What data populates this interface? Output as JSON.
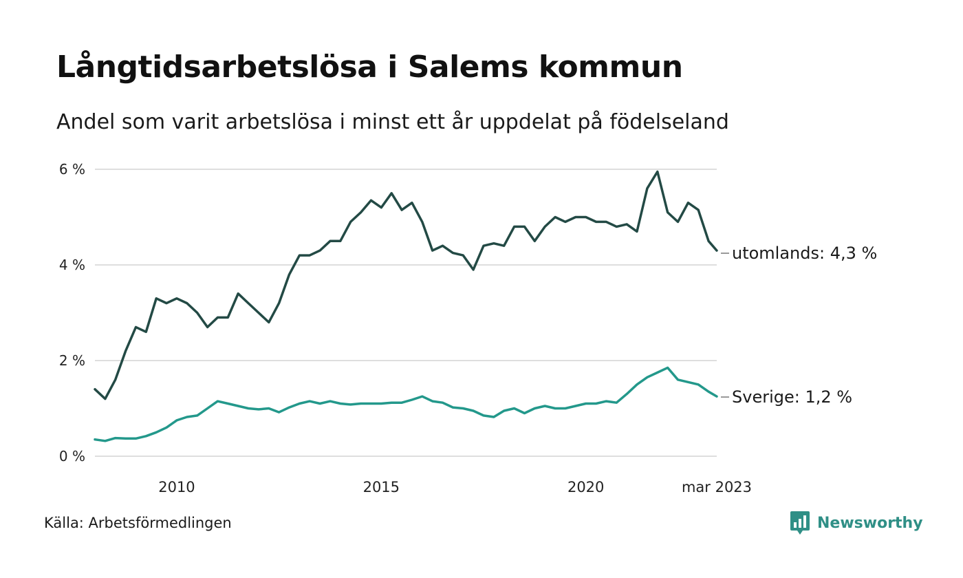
{
  "header": {
    "title": "Långtidsarbetslösa i Salems kommun",
    "subtitle": "Andel som varit arbetslösa i minst ett år uppdelat på födelseland"
  },
  "footer": {
    "source": "Källa: Arbetsförmedlingen",
    "brand": "Newsworthy",
    "brand_icon": "bar-chart-speech-icon"
  },
  "chart_data": {
    "type": "line",
    "x_unit": "year",
    "xlim": [
      2008,
      2023.2
    ],
    "ylim": [
      0,
      6
    ],
    "yticks": [
      0,
      2,
      4,
      6
    ],
    "ytick_labels": [
      "0 %",
      "2 %",
      "4 %",
      "6 %"
    ],
    "xticks": [
      2010,
      2015,
      2020,
      2023.2
    ],
    "xtick_labels": [
      "2010",
      "2015",
      "2020",
      "mar 2023"
    ],
    "grid": "horizontal",
    "legend": "direct labels at line ends",
    "series": [
      {
        "name": "utomlands",
        "end_label": "utomlands: 4,3 %",
        "color": "#234a45",
        "x": [
          2008.0,
          2008.25,
          2008.5,
          2008.75,
          2009.0,
          2009.25,
          2009.5,
          2009.75,
          2010.0,
          2010.25,
          2010.5,
          2010.75,
          2011.0,
          2011.25,
          2011.5,
          2011.75,
          2012.0,
          2012.25,
          2012.5,
          2012.75,
          2013.0,
          2013.25,
          2013.5,
          2013.75,
          2014.0,
          2014.25,
          2014.5,
          2014.75,
          2015.0,
          2015.25,
          2015.5,
          2015.75,
          2016.0,
          2016.25,
          2016.5,
          2016.75,
          2017.0,
          2017.25,
          2017.5,
          2017.75,
          2018.0,
          2018.25,
          2018.5,
          2018.75,
          2019.0,
          2019.25,
          2019.5,
          2019.75,
          2020.0,
          2020.25,
          2020.5,
          2020.75,
          2021.0,
          2021.25,
          2021.5,
          2021.75,
          2022.0,
          2022.25,
          2022.5,
          2022.75,
          2023.0,
          2023.2
        ],
        "y": [
          1.4,
          1.2,
          1.6,
          2.2,
          2.7,
          2.6,
          3.3,
          3.2,
          3.3,
          3.2,
          3.0,
          2.7,
          2.9,
          2.9,
          3.4,
          3.2,
          3.0,
          2.8,
          3.2,
          3.8,
          4.2,
          4.2,
          4.3,
          4.5,
          4.5,
          4.9,
          5.1,
          5.35,
          5.2,
          5.5,
          5.15,
          5.3,
          4.9,
          4.3,
          4.4,
          4.25,
          4.2,
          3.9,
          4.4,
          4.45,
          4.4,
          4.8,
          4.8,
          4.5,
          4.8,
          5.0,
          4.9,
          5.0,
          5.0,
          4.9,
          4.9,
          4.8,
          4.85,
          4.7,
          5.6,
          5.95,
          5.1,
          4.9,
          5.3,
          5.15,
          4.5,
          4.3
        ]
      },
      {
        "name": "Sverige",
        "end_label": "Sverige: 1,2 %",
        "color": "#23988b",
        "x": [
          2008.0,
          2008.25,
          2008.5,
          2008.75,
          2009.0,
          2009.25,
          2009.5,
          2009.75,
          2010.0,
          2010.25,
          2010.5,
          2010.75,
          2011.0,
          2011.25,
          2011.5,
          2011.75,
          2012.0,
          2012.25,
          2012.5,
          2012.75,
          2013.0,
          2013.25,
          2013.5,
          2013.75,
          2014.0,
          2014.25,
          2014.5,
          2014.75,
          2015.0,
          2015.25,
          2015.5,
          2015.75,
          2016.0,
          2016.25,
          2016.5,
          2016.75,
          2017.0,
          2017.25,
          2017.5,
          2017.75,
          2018.0,
          2018.25,
          2018.5,
          2018.75,
          2019.0,
          2019.25,
          2019.5,
          2019.75,
          2020.0,
          2020.25,
          2020.5,
          2020.75,
          2021.0,
          2021.25,
          2021.5,
          2021.75,
          2022.0,
          2022.25,
          2022.5,
          2022.75,
          2023.0,
          2023.2
        ],
        "y": [
          0.35,
          0.32,
          0.38,
          0.37,
          0.37,
          0.42,
          0.5,
          0.6,
          0.75,
          0.82,
          0.85,
          1.0,
          1.15,
          1.1,
          1.05,
          1.0,
          0.98,
          1.0,
          0.92,
          1.02,
          1.1,
          1.15,
          1.1,
          1.15,
          1.1,
          1.08,
          1.1,
          1.1,
          1.1,
          1.12,
          1.12,
          1.18,
          1.25,
          1.15,
          1.12,
          1.02,
          1.0,
          0.95,
          0.85,
          0.82,
          0.95,
          1.0,
          0.9,
          1.0,
          1.05,
          1.0,
          1.0,
          1.05,
          1.1,
          1.1,
          1.15,
          1.12,
          1.3,
          1.5,
          1.65,
          1.75,
          1.85,
          1.6,
          1.55,
          1.5,
          1.35,
          1.25
        ]
      }
    ]
  }
}
